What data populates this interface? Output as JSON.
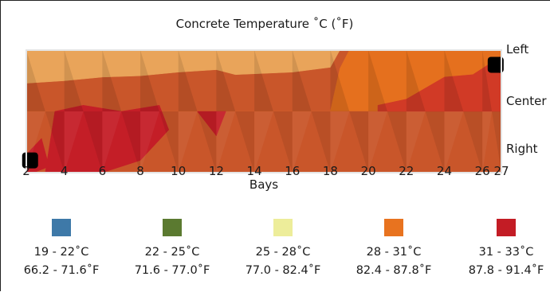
{
  "chart_data": {
    "type": "heatmap",
    "title": "Concrete Temperature ˚C (˚F)",
    "xlabel": "Bays",
    "ylabel": "",
    "x_ticks": [
      "2",
      "4",
      "6",
      "8",
      "10",
      "12",
      "14",
      "16",
      "18",
      "20",
      "22",
      "24",
      "26",
      "27"
    ],
    "x_values": [
      2,
      4,
      6,
      8,
      10,
      12,
      14,
      16,
      18,
      20,
      22,
      24,
      26,
      27
    ],
    "xlim": [
      2,
      27
    ],
    "rows": [
      "Left",
      "Center",
      "Right"
    ],
    "legend": [
      {
        "range_c": "19 - 22˚C",
        "range_f": "66.2 - 71.6˚F",
        "color": "#3e79a8"
      },
      {
        "range_c": "22 - 25˚C",
        "range_f": "71.6 - 77.0˚F",
        "color": "#5b7a30"
      },
      {
        "range_c": "25 - 28˚C",
        "range_f": "77.0 - 82.4˚F",
        "color": "#eded9a"
      },
      {
        "range_c": "28 - 31˚C",
        "range_f": "82.4 - 87.8˚F",
        "color": "#e8731f"
      },
      {
        "range_c": "31 - 33˚C",
        "range_f": "87.8 - 91.4˚F",
        "color": "#c31c25"
      }
    ],
    "temperature_bands": [
      {
        "color": "#6f8a3a",
        "points": [
          [
            2.0,
            1.0
          ],
          [
            4.5,
            0.94
          ],
          [
            8.0,
            0.97
          ],
          [
            11.0,
            1.0
          ],
          [
            2.0,
            1.0
          ]
        ]
      },
      {
        "color": "#e8e89a",
        "points": [
          [
            2.0,
            0.95
          ],
          [
            5.0,
            0.93
          ],
          [
            8.0,
            0.92
          ],
          [
            11.0,
            0.95
          ],
          [
            14.0,
            0.96
          ],
          [
            18.0,
            1.0
          ],
          [
            2.0,
            1.0
          ]
        ]
      },
      {
        "color": "#e9a45a",
        "points": [
          [
            2.0,
            0.73
          ],
          [
            4.0,
            0.75
          ],
          [
            6.0,
            0.78
          ],
          [
            8.0,
            0.79
          ],
          [
            10.0,
            0.82
          ],
          [
            12.0,
            0.84
          ],
          [
            13.0,
            0.8
          ],
          [
            16.0,
            0.82
          ],
          [
            18.0,
            0.86
          ],
          [
            18.5,
            1.0
          ],
          [
            2.0,
            1.0
          ]
        ]
      },
      {
        "color": "#e5701e",
        "points": [
          [
            2.0,
            0.5
          ],
          [
            18.0,
            0.5
          ],
          [
            18.5,
            0.85
          ],
          [
            19.0,
            1.0
          ],
          [
            27.0,
            1.0
          ],
          [
            27.0,
            0.5
          ],
          [
            2.0,
            0.5
          ]
        ]
      },
      {
        "color": "#c9562a",
        "points": [
          [
            2.0,
            0.0
          ],
          [
            27.0,
            0.0
          ],
          [
            27.0,
            0.5
          ],
          [
            2.0,
            0.5
          ]
        ]
      },
      {
        "color": "#d13a26",
        "points": [
          [
            20.5,
            0.55
          ],
          [
            22.0,
            0.6
          ],
          [
            24.0,
            0.78
          ],
          [
            25.5,
            0.8
          ],
          [
            27.0,
            0.95
          ],
          [
            27.0,
            0.5
          ],
          [
            20.5,
            0.5
          ]
        ]
      },
      {
        "color": "#c41e27",
        "points": [
          [
            3.0,
            0.0
          ],
          [
            3.5,
            0.5
          ],
          [
            5.0,
            0.55
          ],
          [
            7.0,
            0.5
          ],
          [
            9.0,
            0.55
          ],
          [
            9.5,
            0.35
          ],
          [
            8.0,
            0.1
          ],
          [
            6.0,
            0.0
          ]
        ]
      },
      {
        "color": "#c41e27",
        "points": [
          [
            11.0,
            0.5
          ],
          [
            12.5,
            0.5
          ],
          [
            12.0,
            0.3
          ]
        ]
      },
      {
        "color": "#c41e27",
        "points": [
          [
            2.0,
            0.15
          ],
          [
            2.8,
            0.28
          ],
          [
            3.2,
            0.05
          ],
          [
            2.4,
            0.0
          ],
          [
            2.0,
            0.0
          ]
        ]
      }
    ],
    "sensors": [
      {
        "x": 26.7,
        "row": "Left"
      },
      {
        "x": 2.2,
        "row": "Right"
      }
    ]
  }
}
